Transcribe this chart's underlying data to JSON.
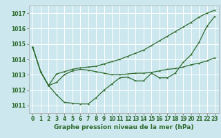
{
  "background_color": "#cce8ee",
  "grid_color": "#ffffff",
  "line_color": "#2d6a2d",
  "title": "Graphe pression niveau de la mer (hPa)",
  "ylim": [
    1010.5,
    1017.5
  ],
  "xlim": [
    -0.5,
    23.5
  ],
  "yticks": [
    1011,
    1012,
    1013,
    1014,
    1015,
    1016,
    1017
  ],
  "xticks": [
    0,
    1,
    2,
    3,
    4,
    5,
    6,
    7,
    8,
    9,
    10,
    11,
    12,
    13,
    14,
    15,
    16,
    17,
    18,
    19,
    20,
    21,
    22,
    23
  ],
  "series1": [
    1014.8,
    1013.2,
    1012.3,
    1011.7,
    1011.2,
    1011.15,
    1011.1,
    1011.1,
    1011.5,
    1012.0,
    1012.4,
    1012.8,
    1012.85,
    1012.6,
    1012.6,
    1013.1,
    1012.8,
    1012.8,
    1013.1,
    1013.8,
    1014.3,
    1015.1,
    1016.15,
    1016.8
  ],
  "series2": [
    1014.8,
    1013.2,
    1012.3,
    1013.05,
    1013.2,
    1013.35,
    1013.45,
    1013.5,
    1013.55,
    1013.7,
    1013.85,
    1014.0,
    1014.2,
    1014.4,
    1014.6,
    1014.9,
    1015.2,
    1015.5,
    1015.8,
    1016.1,
    1016.4,
    1016.75,
    1017.0,
    1017.2
  ],
  "series3": [
    1014.8,
    1013.2,
    1012.3,
    1012.5,
    1013.0,
    1013.25,
    1013.35,
    1013.3,
    1013.2,
    1013.1,
    1013.0,
    1013.0,
    1013.05,
    1013.1,
    1013.1,
    1013.15,
    1013.25,
    1013.35,
    1013.4,
    1013.5,
    1013.65,
    1013.75,
    1013.9,
    1014.1
  ],
  "title_fontsize": 6.5,
  "tick_fontsize": 5.5,
  "linewidth": 0.9,
  "markersize": 2.5
}
